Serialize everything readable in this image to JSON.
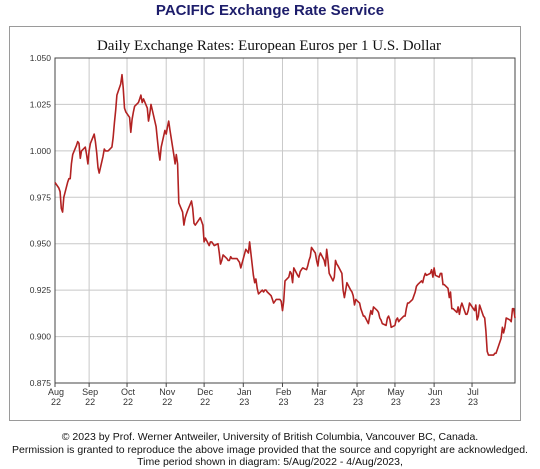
{
  "header": {
    "service_title": "PACIFIC Exchange Rate Service"
  },
  "footer": {
    "copyright": "© 2023 by Prof. Werner Antweiler, University of British Columbia, Vancouver BC, Canada.",
    "permission": "Permission is granted to reproduce the above image provided that the source and copyright are acknowledged.",
    "time_period": "Time period shown in diagram: 5/Aug/2022 - 4/Aug/2023,"
  },
  "colors": {
    "line": "#b22222",
    "grid": "#c8c8c8",
    "axis": "#444444",
    "title": "#1d1d6b"
  },
  "chart_data": {
    "type": "line",
    "title": "Daily Exchange Rates: European Euros per 1 U.S. Dollar",
    "xlabel": "",
    "ylabel": "",
    "ylim": [
      0.875,
      1.05
    ],
    "yticks": [
      "1.050",
      "1.025",
      "1.000",
      "0.975",
      "0.950",
      "0.925",
      "0.900",
      "0.875"
    ],
    "xlim": [
      "2022-08-05",
      "2023-08-04"
    ],
    "xticks": [
      {
        "month": "Aug",
        "year": "22",
        "date": "2022-08-05"
      },
      {
        "month": "Sep",
        "year": "22",
        "date": "2022-09-01"
      },
      {
        "month": "Oct",
        "year": "22",
        "date": "2022-10-01"
      },
      {
        "month": "Nov",
        "year": "22",
        "date": "2022-11-01"
      },
      {
        "month": "Dec",
        "year": "22",
        "date": "2022-12-01"
      },
      {
        "month": "Jan",
        "year": "23",
        "date": "2023-01-01"
      },
      {
        "month": "Feb",
        "year": "23",
        "date": "2023-02-01"
      },
      {
        "month": "Mar",
        "year": "23",
        "date": "2023-03-01"
      },
      {
        "month": "Apr",
        "year": "23",
        "date": "2023-04-01"
      },
      {
        "month": "May",
        "year": "23",
        "date": "2023-05-01"
      },
      {
        "month": "Jun",
        "year": "23",
        "date": "2023-06-01"
      },
      {
        "month": "Jul",
        "year": "23",
        "date": "2023-07-01"
      }
    ],
    "grid": true,
    "series": [
      {
        "points": [
          [
            "2022-08-05",
            0.983
          ],
          [
            "2022-08-08",
            0.98
          ],
          [
            "2022-08-09",
            0.978
          ],
          [
            "2022-08-10",
            0.969
          ],
          [
            "2022-08-11",
            0.967
          ],
          [
            "2022-08-12",
            0.975
          ],
          [
            "2022-08-15",
            0.983
          ],
          [
            "2022-08-16",
            0.985
          ],
          [
            "2022-08-17",
            0.985
          ],
          [
            "2022-08-18",
            0.993
          ],
          [
            "2022-08-19",
            0.998
          ],
          [
            "2022-08-22",
            1.003
          ],
          [
            "2022-08-23",
            1.005
          ],
          [
            "2022-08-24",
            1.004
          ],
          [
            "2022-08-25",
            0.996
          ],
          [
            "2022-08-26",
            1.0
          ],
          [
            "2022-08-29",
            1.002
          ],
          [
            "2022-08-30",
            0.998
          ],
          [
            "2022-08-31",
            0.993
          ],
          [
            "2022-09-01",
            1.0
          ],
          [
            "2022-09-02",
            1.004
          ],
          [
            "2022-09-05",
            1.009
          ],
          [
            "2022-09-06",
            1.005
          ],
          [
            "2022-09-07",
            0.999
          ],
          [
            "2022-09-08",
            0.991
          ],
          [
            "2022-09-09",
            0.988
          ],
          [
            "2022-09-12",
            0.997
          ],
          [
            "2022-09-13",
            1.001
          ],
          [
            "2022-09-14",
            1.0
          ],
          [
            "2022-09-15",
            1.0
          ],
          [
            "2022-09-16",
            1.0
          ],
          [
            "2022-09-19",
            1.002
          ],
          [
            "2022-09-20",
            1.007
          ],
          [
            "2022-09-21",
            1.015
          ],
          [
            "2022-09-22",
            1.022
          ],
          [
            "2022-09-23",
            1.03
          ],
          [
            "2022-09-26",
            1.036
          ],
          [
            "2022-09-27",
            1.041
          ],
          [
            "2022-09-28",
            1.034
          ],
          [
            "2022-09-29",
            1.023
          ],
          [
            "2022-09-30",
            1.021
          ],
          [
            "2022-10-03",
            1.018
          ],
          [
            "2022-10-04",
            1.01
          ],
          [
            "2022-10-05",
            1.017
          ],
          [
            "2022-10-06",
            1.021
          ],
          [
            "2022-10-07",
            1.024
          ],
          [
            "2022-10-10",
            1.026
          ],
          [
            "2022-10-11",
            1.028
          ],
          [
            "2022-10-12",
            1.03
          ],
          [
            "2022-10-13",
            1.026
          ],
          [
            "2022-10-14",
            1.028
          ],
          [
            "2022-10-17",
            1.023
          ],
          [
            "2022-10-18",
            1.016
          ],
          [
            "2022-10-19",
            1.02
          ],
          [
            "2022-10-20",
            1.025
          ],
          [
            "2022-10-21",
            1.022
          ],
          [
            "2022-10-24",
            1.013
          ],
          [
            "2022-10-25",
            1.006
          ],
          [
            "2022-10-26",
            1.0
          ],
          [
            "2022-10-27",
            0.995
          ],
          [
            "2022-10-28",
            1.002
          ],
          [
            "2022-10-31",
            1.011
          ],
          [
            "2022-11-01",
            1.009
          ],
          [
            "2022-11-02",
            1.013
          ],
          [
            "2022-11-03",
            1.016
          ],
          [
            "2022-11-04",
            1.011
          ],
          [
            "2022-11-07",
            0.998
          ],
          [
            "2022-11-08",
            0.993
          ],
          [
            "2022-11-09",
            0.998
          ],
          [
            "2022-11-10",
            0.993
          ],
          [
            "2022-11-11",
            0.972
          ],
          [
            "2022-11-14",
            0.967
          ],
          [
            "2022-11-15",
            0.96
          ],
          [
            "2022-11-16",
            0.964
          ],
          [
            "2022-11-17",
            0.966
          ],
          [
            "2022-11-18",
            0.968
          ],
          [
            "2022-11-21",
            0.973
          ],
          [
            "2022-11-22",
            0.969
          ],
          [
            "2022-11-23",
            0.961
          ],
          [
            "2022-11-24",
            0.96
          ],
          [
            "2022-11-25",
            0.961
          ],
          [
            "2022-11-28",
            0.964
          ],
          [
            "2022-11-29",
            0.962
          ],
          [
            "2022-11-30",
            0.96
          ],
          [
            "2022-12-01",
            0.951
          ],
          [
            "2022-12-02",
            0.953
          ],
          [
            "2022-12-05",
            0.949
          ],
          [
            "2022-12-06",
            0.951
          ],
          [
            "2022-12-07",
            0.951
          ],
          [
            "2022-12-08",
            0.95
          ],
          [
            "2022-12-09",
            0.949
          ],
          [
            "2022-12-12",
            0.95
          ],
          [
            "2022-12-13",
            0.945
          ],
          [
            "2022-12-14",
            0.939
          ],
          [
            "2022-12-15",
            0.941
          ],
          [
            "2022-12-16",
            0.944
          ],
          [
            "2022-12-19",
            0.942
          ],
          [
            "2022-12-20",
            0.941
          ],
          [
            "2022-12-21",
            0.941
          ],
          [
            "2022-12-22",
            0.943
          ],
          [
            "2022-12-23",
            0.942
          ],
          [
            "2022-12-27",
            0.942
          ],
          [
            "2022-12-28",
            0.941
          ],
          [
            "2022-12-29",
            0.94
          ],
          [
            "2022-12-30",
            0.937
          ],
          [
            "2023-01-03",
            0.947
          ],
          [
            "2023-01-04",
            0.946
          ],
          [
            "2023-01-05",
            0.945
          ],
          [
            "2023-01-06",
            0.951
          ],
          [
            "2023-01-09",
            0.933
          ],
          [
            "2023-01-10",
            0.929
          ],
          [
            "2023-01-11",
            0.931
          ],
          [
            "2023-01-12",
            0.926
          ],
          [
            "2023-01-13",
            0.923
          ],
          [
            "2023-01-16",
            0.925
          ],
          [
            "2023-01-17",
            0.924
          ],
          [
            "2023-01-18",
            0.925
          ],
          [
            "2023-01-19",
            0.925
          ],
          [
            "2023-01-20",
            0.924
          ],
          [
            "2023-01-23",
            0.922
          ],
          [
            "2023-01-24",
            0.92
          ],
          [
            "2023-01-25",
            0.918
          ],
          [
            "2023-01-26",
            0.919
          ],
          [
            "2023-01-27",
            0.92
          ],
          [
            "2023-01-30",
            0.92
          ],
          [
            "2023-01-31",
            0.919
          ],
          [
            "2023-02-01",
            0.914
          ],
          [
            "2023-02-02",
            0.919
          ],
          [
            "2023-02-03",
            0.93
          ],
          [
            "2023-02-06",
            0.932
          ],
          [
            "2023-02-07",
            0.935
          ],
          [
            "2023-02-08",
            0.934
          ],
          [
            "2023-02-09",
            0.929
          ],
          [
            "2023-02-10",
            0.937
          ],
          [
            "2023-02-13",
            0.933
          ],
          [
            "2023-02-14",
            0.932
          ],
          [
            "2023-02-15",
            0.935
          ],
          [
            "2023-02-16",
            0.936
          ],
          [
            "2023-02-17",
            0.937
          ],
          [
            "2023-02-20",
            0.936
          ],
          [
            "2023-02-21",
            0.938
          ],
          [
            "2023-02-22",
            0.941
          ],
          [
            "2023-02-23",
            0.943
          ],
          [
            "2023-02-24",
            0.948
          ],
          [
            "2023-02-27",
            0.945
          ],
          [
            "2023-02-28",
            0.941
          ],
          [
            "2023-03-01",
            0.938
          ],
          [
            "2023-03-02",
            0.943
          ],
          [
            "2023-03-03",
            0.945
          ],
          [
            "2023-03-06",
            0.941
          ],
          [
            "2023-03-07",
            0.938
          ],
          [
            "2023-03-08",
            0.947
          ],
          [
            "2023-03-09",
            0.941
          ],
          [
            "2023-03-10",
            0.934
          ],
          [
            "2023-03-13",
            0.93
          ],
          [
            "2023-03-14",
            0.932
          ],
          [
            "2023-03-15",
            0.941
          ],
          [
            "2023-03-16",
            0.939
          ],
          [
            "2023-03-17",
            0.938
          ],
          [
            "2023-03-20",
            0.934
          ],
          [
            "2023-03-21",
            0.925
          ],
          [
            "2023-03-22",
            0.921
          ],
          [
            "2023-03-23",
            0.925
          ],
          [
            "2023-03-24",
            0.929
          ],
          [
            "2023-03-27",
            0.925
          ],
          [
            "2023-03-28",
            0.924
          ],
          [
            "2023-03-29",
            0.922
          ],
          [
            "2023-03-30",
            0.917
          ],
          [
            "2023-03-31",
            0.92
          ],
          [
            "2023-04-03",
            0.918
          ],
          [
            "2023-04-04",
            0.915
          ],
          [
            "2023-04-05",
            0.913
          ],
          [
            "2023-04-06",
            0.911
          ],
          [
            "2023-04-07",
            0.911
          ],
          [
            "2023-04-10",
            0.907
          ],
          [
            "2023-04-11",
            0.911
          ],
          [
            "2023-04-12",
            0.914
          ],
          [
            "2023-04-13",
            0.912
          ],
          [
            "2023-04-14",
            0.916
          ],
          [
            "2023-04-17",
            0.914
          ],
          [
            "2023-04-18",
            0.913
          ],
          [
            "2023-04-19",
            0.91
          ],
          [
            "2023-04-20",
            0.909
          ],
          [
            "2023-04-21",
            0.907
          ],
          [
            "2023-04-24",
            0.906
          ],
          [
            "2023-04-25",
            0.91
          ],
          [
            "2023-04-26",
            0.911
          ],
          [
            "2023-04-27",
            0.909
          ],
          [
            "2023-04-28",
            0.905
          ],
          [
            "2023-05-01",
            0.906
          ],
          [
            "2023-05-02",
            0.909
          ],
          [
            "2023-05-03",
            0.91
          ],
          [
            "2023-05-04",
            0.908
          ],
          [
            "2023-05-05",
            0.909
          ],
          [
            "2023-05-08",
            0.911
          ],
          [
            "2023-05-09",
            0.911
          ],
          [
            "2023-05-10",
            0.915
          ],
          [
            "2023-05-11",
            0.918
          ],
          [
            "2023-05-12",
            0.918
          ],
          [
            "2023-05-15",
            0.92
          ],
          [
            "2023-05-16",
            0.922
          ],
          [
            "2023-05-17",
            0.924
          ],
          [
            "2023-05-18",
            0.927
          ],
          [
            "2023-05-19",
            0.928
          ],
          [
            "2023-05-22",
            0.93
          ],
          [
            "2023-05-23",
            0.929
          ],
          [
            "2023-05-24",
            0.932
          ],
          [
            "2023-05-25",
            0.934
          ],
          [
            "2023-05-26",
            0.933
          ],
          [
            "2023-05-29",
            0.934
          ],
          [
            "2023-05-30",
            0.936
          ],
          [
            "2023-05-31",
            0.932
          ],
          [
            "2023-06-01",
            0.937
          ],
          [
            "2023-06-02",
            0.933
          ],
          [
            "2023-06-05",
            0.932
          ],
          [
            "2023-06-06",
            0.934
          ],
          [
            "2023-06-07",
            0.934
          ],
          [
            "2023-06-08",
            0.928
          ],
          [
            "2023-06-09",
            0.928
          ],
          [
            "2023-06-12",
            0.926
          ],
          [
            "2023-06-13",
            0.921
          ],
          [
            "2023-06-14",
            0.924
          ],
          [
            "2023-06-15",
            0.915
          ],
          [
            "2023-06-16",
            0.915
          ],
          [
            "2023-06-19",
            0.913
          ],
          [
            "2023-06-20",
            0.916
          ],
          [
            "2023-06-21",
            0.912
          ],
          [
            "2023-06-22",
            0.916
          ],
          [
            "2023-06-23",
            0.918
          ],
          [
            "2023-06-26",
            0.912
          ],
          [
            "2023-06-27",
            0.912
          ],
          [
            "2023-06-28",
            0.914
          ],
          [
            "2023-06-29",
            0.918
          ],
          [
            "2023-06-30",
            0.917
          ],
          [
            "2023-07-03",
            0.914
          ],
          [
            "2023-07-04",
            0.917
          ],
          [
            "2023-07-05",
            0.909
          ],
          [
            "2023-07-06",
            0.911
          ],
          [
            "2023-07-07",
            0.917
          ],
          [
            "2023-07-10",
            0.911
          ],
          [
            "2023-07-11",
            0.91
          ],
          [
            "2023-07-12",
            0.903
          ],
          [
            "2023-07-13",
            0.892
          ],
          [
            "2023-07-14",
            0.89
          ],
          [
            "2023-07-17",
            0.89
          ],
          [
            "2023-07-18",
            0.89
          ],
          [
            "2023-07-19",
            0.891
          ],
          [
            "2023-07-20",
            0.891
          ],
          [
            "2023-07-21",
            0.893
          ],
          [
            "2023-07-24",
            0.899
          ],
          [
            "2023-07-25",
            0.905
          ],
          [
            "2023-07-26",
            0.902
          ],
          [
            "2023-07-27",
            0.905
          ],
          [
            "2023-07-28",
            0.91
          ],
          [
            "2023-07-31",
            0.909
          ],
          [
            "2023-08-01",
            0.908
          ],
          [
            "2023-08-02",
            0.915
          ],
          [
            "2023-08-03",
            0.915
          ],
          [
            "2023-08-04",
            0.91
          ]
        ]
      }
    ]
  }
}
